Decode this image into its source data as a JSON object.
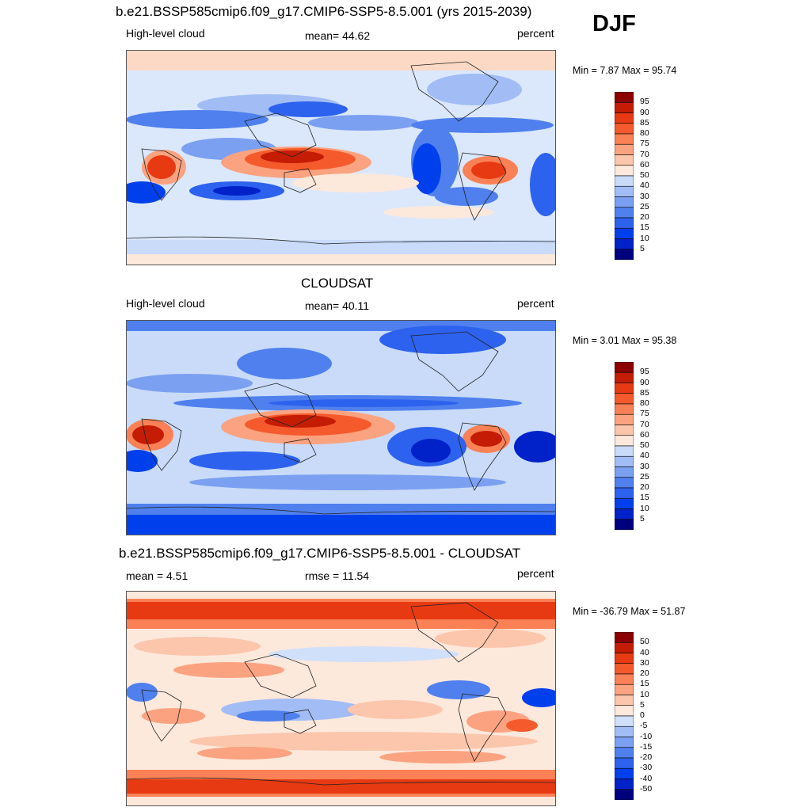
{
  "season": "DJF",
  "colors": {
    "sequential": [
      "#00007f",
      "#0022c8",
      "#0040ec",
      "#2d62ee",
      "#4f80ee",
      "#7ba0f2",
      "#a2bdf5",
      "#c9dbf8",
      "#fde8dc",
      "#fcc6ac",
      "#fba380",
      "#f98155",
      "#f55a2d",
      "#e83a12",
      "#c41c05",
      "#8b0000"
    ],
    "diverging": [
      "#00007f",
      "#0022c8",
      "#0040ec",
      "#2d62ee",
      "#4f80ee",
      "#7ba0f2",
      "#a2bdf5",
      "#d0e0fa",
      "#fde8dc",
      "#fcc6ac",
      "#fba380",
      "#f98155",
      "#f55a2d",
      "#e83a12",
      "#c41c05",
      "#8b0000"
    ]
  },
  "panels": [
    {
      "title": "b.e21.BSSP585cmip6.f09_g17.CMIP6-SSP5-8.5.001 (yrs 2015-2039)",
      "left_label": "High-level cloud",
      "center_label": "mean=  44.62",
      "right_label": "percent",
      "minmax": "Min =   7.87 Max =  95.74",
      "colorbar_labels": [
        "95",
        "90",
        "85",
        "80",
        "75",
        "70",
        "60",
        "50",
        "40",
        "30",
        "25",
        "20",
        "15",
        "10",
        "5"
      ]
    },
    {
      "title": "CLOUDSAT",
      "left_label": "High-level cloud",
      "center_label": "mean=  40.11",
      "right_label": "percent",
      "minmax": "Min =   3.01 Max =  95.38",
      "colorbar_labels": [
        "95",
        "90",
        "85",
        "80",
        "75",
        "70",
        "60",
        "50",
        "40",
        "30",
        "25",
        "20",
        "15",
        "10",
        "5"
      ]
    },
    {
      "title": "b.e21.BSSP585cmip6.f09_g17.CMIP6-SSP5-8.5.001 - CLOUDSAT",
      "left_label": "mean =   4.51",
      "center_label": "rmse =  11.54",
      "right_label": "percent",
      "minmax": "Min = -36.79 Max =  51.87",
      "colorbar_labels": [
        "50",
        "40",
        "30",
        "20",
        "15",
        "10",
        "5",
        "0",
        "-5",
        "-10",
        "-15",
        "-20",
        "-30",
        "-40",
        "-50"
      ]
    }
  ]
}
